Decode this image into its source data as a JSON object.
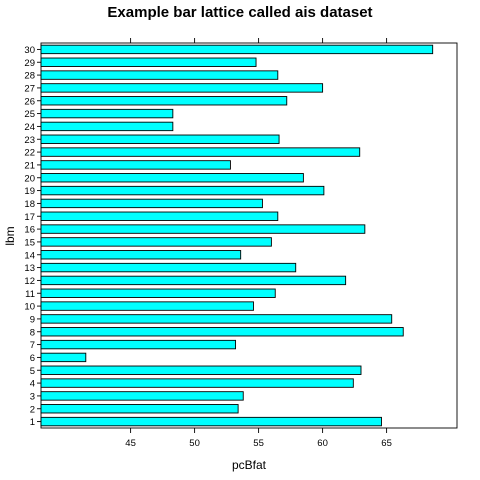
{
  "chart_data": {
    "type": "bar",
    "orientation": "horizontal",
    "title": "Example bar lattice called ais dataset",
    "xlabel": "pcBfat",
    "ylabel": "lbm",
    "categories": [
      "1",
      "2",
      "3",
      "4",
      "5",
      "6",
      "7",
      "8",
      "9",
      "10",
      "11",
      "12",
      "13",
      "14",
      "15",
      "16",
      "17",
      "18",
      "19",
      "20",
      "21",
      "22",
      "23",
      "24",
      "25",
      "26",
      "27",
      "28",
      "29",
      "30"
    ],
    "values": [
      64.6,
      53.4,
      53.8,
      62.4,
      63.0,
      41.5,
      53.2,
      66.3,
      65.4,
      54.6,
      56.3,
      61.8,
      57.9,
      53.6,
      56.0,
      63.3,
      56.5,
      55.3,
      60.1,
      58.5,
      52.8,
      62.9,
      56.6,
      48.3,
      48.3,
      57.2,
      60.0,
      56.5,
      54.8,
      68.6
    ],
    "xlim": [
      38.0,
      70.5
    ],
    "xticks": [
      45,
      50,
      55,
      60,
      65
    ],
    "grid": false
  },
  "colors": {
    "bar_fill": "#00ffff",
    "bar_stroke": "#000000"
  }
}
